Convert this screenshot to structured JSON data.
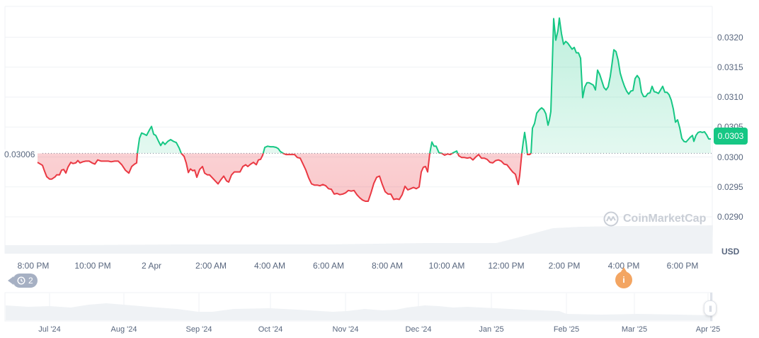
{
  "chart_data": {
    "type": "line",
    "title": "",
    "xlabel": "",
    "ylabel": "USD",
    "currency_label": "USD",
    "baseline_value": 0.03006,
    "baseline_label": "0.03006",
    "current_price": 0.0303,
    "current_price_label": "0.0303",
    "ylim": [
      0.0284,
      0.0325
    ],
    "grid": true,
    "y_ticks": [
      "0.0320",
      "0.0315",
      "0.0310",
      "0.0305",
      "0.0300",
      "0.0295",
      "0.0290"
    ],
    "x_ticks": [
      "8:00 PM",
      "10:00 PM",
      "2 Apr",
      "2:00 AM",
      "4:00 AM",
      "6:00 AM",
      "8:00 AM",
      "10:00 AM",
      "12:00 PM",
      "2:00 PM",
      "4:00 PM",
      "6:00 PM"
    ],
    "colors": {
      "up": "#16c784",
      "down": "#ea3943",
      "up_fill": "#16c784",
      "down_fill": "#ea3943",
      "grid": "#eff2f5",
      "volume": "#eff2f5"
    },
    "series": [
      {
        "name": "Price",
        "points": [
          [
            53,
            0.02991
          ],
          [
            60,
            0.02986
          ],
          [
            63,
            0.02976
          ],
          [
            66,
            0.02967
          ],
          [
            70,
            0.02963
          ],
          [
            73,
            0.02963
          ],
          [
            78,
            0.02967
          ],
          [
            80,
            0.0297
          ],
          [
            84,
            0.0297
          ],
          [
            87,
            0.02978
          ],
          [
            90,
            0.02979
          ],
          [
            93,
            0.02973
          ],
          [
            96,
            0.02983
          ],
          [
            100,
            0.02991
          ],
          [
            103,
            0.02989
          ],
          [
            107,
            0.0299
          ],
          [
            110,
            0.02994
          ],
          [
            113,
            0.0299
          ],
          [
            117,
            0.02992
          ],
          [
            121,
            0.02993
          ],
          [
            126,
            0.02993
          ],
          [
            130,
            0.0299
          ],
          [
            134,
            0.02988
          ],
          [
            138,
            0.02995
          ],
          [
            143,
            0.02993
          ],
          [
            148,
            0.02993
          ],
          [
            153,
            0.02993
          ],
          [
            157,
            0.02992
          ],
          [
            162,
            0.02993
          ],
          [
            167,
            0.02993
          ],
          [
            172,
            0.02987
          ],
          [
            177,
            0.02978
          ],
          [
            182,
            0.02973
          ],
          [
            186,
            0.02984
          ],
          [
            190,
            0.02988
          ],
          [
            193,
            0.0299
          ],
          [
            194,
            0.03006
          ],
          [
            197,
            0.03031
          ],
          [
            200,
            0.0304
          ],
          [
            204,
            0.03038
          ],
          [
            207,
            0.03036
          ],
          [
            211,
            0.03045
          ],
          [
            214,
            0.03051
          ],
          [
            217,
            0.03038
          ],
          [
            220,
            0.03036
          ],
          [
            224,
            0.03026
          ],
          [
            227,
            0.03019
          ],
          [
            230,
            0.03025
          ],
          [
            233,
            0.03021
          ],
          [
            237,
            0.03026
          ],
          [
            241,
            0.03029
          ],
          [
            245,
            0.03026
          ],
          [
            249,
            0.03024
          ],
          [
            253,
            0.03015
          ],
          [
            256,
            0.03006
          ],
          [
            260,
            0.03001
          ],
          [
            263,
            0.0299
          ],
          [
            266,
            0.02974
          ],
          [
            269,
            0.0298
          ],
          [
            272,
            0.02977
          ],
          [
            275,
            0.02978
          ],
          [
            278,
            0.02966
          ],
          [
            282,
            0.02979
          ],
          [
            286,
            0.02984
          ],
          [
            289,
            0.02973
          ],
          [
            293,
            0.0297
          ],
          [
            296,
            0.0297
          ],
          [
            300,
            0.02965
          ],
          [
            304,
            0.0296
          ],
          [
            308,
            0.02955
          ],
          [
            312,
            0.02962
          ],
          [
            316,
            0.02968
          ],
          [
            320,
            0.0296
          ],
          [
            323,
            0.02958
          ],
          [
            327,
            0.0297
          ],
          [
            331,
            0.02975
          ],
          [
            335,
            0.02975
          ],
          [
            339,
            0.02975
          ],
          [
            343,
            0.02984
          ],
          [
            347,
            0.02987
          ],
          [
            350,
            0.02984
          ],
          [
            354,
            0.02988
          ],
          [
            358,
            0.02991
          ],
          [
            362,
            0.02987
          ],
          [
            365,
            0.02995
          ],
          [
            368,
            0.02996
          ],
          [
            371,
            0.03003
          ],
          [
            374,
            0.03016
          ],
          [
            378,
            0.03018
          ],
          [
            382,
            0.03017
          ],
          [
            386,
            0.03017
          ],
          [
            390,
            0.03016
          ],
          [
            393,
            0.03014
          ],
          [
            396,
            0.03009
          ],
          [
            400,
            0.03006
          ],
          [
            404,
            0.03004
          ],
          [
            408,
            0.03004
          ],
          [
            412,
            0.03004
          ],
          [
            416,
            0.03004
          ],
          [
            420,
            0.02999
          ],
          [
            424,
            0.02998
          ],
          [
            428,
            0.02988
          ],
          [
            432,
            0.02978
          ],
          [
            436,
            0.02965
          ],
          [
            440,
            0.02955
          ],
          [
            444,
            0.02953
          ],
          [
            448,
            0.02953
          ],
          [
            452,
            0.02952
          ],
          [
            456,
            0.02954
          ],
          [
            460,
            0.02952
          ],
          [
            464,
            0.02947
          ],
          [
            468,
            0.02946
          ],
          [
            472,
            0.02938
          ],
          [
            476,
            0.02939
          ],
          [
            480,
            0.02937
          ],
          [
            484,
            0.02938
          ],
          [
            488,
            0.0294
          ],
          [
            492,
            0.02944
          ],
          [
            496,
            0.02943
          ],
          [
            500,
            0.02944
          ],
          [
            504,
            0.02937
          ],
          [
            508,
            0.02932
          ],
          [
            512,
            0.02928
          ],
          [
            516,
            0.02926
          ],
          [
            520,
            0.02926
          ],
          [
            524,
            0.0294
          ],
          [
            528,
            0.02956
          ],
          [
            532,
            0.02966
          ],
          [
            536,
            0.02968
          ],
          [
            540,
            0.02954
          ],
          [
            544,
            0.02942
          ],
          [
            548,
            0.02938
          ],
          [
            552,
            0.02938
          ],
          [
            556,
            0.02929
          ],
          [
            560,
            0.0293
          ],
          [
            564,
            0.02929
          ],
          [
            568,
            0.02937
          ],
          [
            572,
            0.02951
          ],
          [
            576,
            0.02945
          ],
          [
            580,
            0.02947
          ],
          [
            584,
            0.02949
          ],
          [
            588,
            0.02947
          ],
          [
            592,
            0.0295
          ],
          [
            595,
            0.02975
          ],
          [
            598,
            0.02983
          ],
          [
            601,
            0.02984
          ],
          [
            604,
            0.02975
          ],
          [
            607,
            0.03006
          ],
          [
            610,
            0.03025
          ],
          [
            613,
            0.03018
          ],
          [
            616,
            0.03018
          ],
          [
            620,
            0.03007
          ],
          [
            624,
            0.03006
          ],
          [
            628,
            0.03003
          ],
          [
            632,
            0.03005
          ],
          [
            636,
            0.03004
          ],
          [
            640,
            0.03007
          ],
          [
            645,
            0.0301
          ],
          [
            648,
            0.03002
          ],
          [
            652,
            0.02999
          ],
          [
            656,
            0.02999
          ],
          [
            660,
            0.02998
          ],
          [
            664,
            0.02999
          ],
          [
            668,
            0.02995
          ],
          [
            672,
            0.03
          ],
          [
            676,
            0.03004
          ],
          [
            680,
            0.02998
          ],
          [
            684,
            0.02998
          ],
          [
            688,
            0.02996
          ],
          [
            692,
            0.02991
          ],
          [
            696,
            0.0299
          ],
          [
            700,
            0.02994
          ],
          [
            704,
            0.02995
          ],
          [
            708,
            0.02993
          ],
          [
            712,
            0.02988
          ],
          [
            716,
            0.02987
          ],
          [
            720,
            0.02981
          ],
          [
            724,
            0.02975
          ],
          [
            728,
            0.02971
          ],
          [
            730,
            0.02962
          ],
          [
            732,
            0.02954
          ],
          [
            734,
            0.02969
          ],
          [
            737,
            0.03006
          ],
          [
            739,
            0.03025
          ],
          [
            741,
            0.03041
          ],
          [
            743,
            0.03025
          ],
          [
            745,
            0.03004
          ],
          [
            748,
            0.03004
          ],
          [
            750,
            0.03006
          ],
          [
            752,
            0.03048
          ],
          [
            755,
            0.03056
          ],
          [
            758,
            0.03073
          ],
          [
            762,
            0.03079
          ],
          [
            765,
            0.03082
          ],
          [
            768,
            0.03079
          ],
          [
            771,
            0.03072
          ],
          [
            774,
            0.03053
          ],
          [
            776,
            0.03062
          ],
          [
            778,
            0.03076
          ],
          [
            782,
            0.03231
          ],
          [
            785,
            0.03195
          ],
          [
            788,
            0.03211
          ],
          [
            790,
            0.03232
          ],
          [
            793,
            0.03206
          ],
          [
            796,
            0.03188
          ],
          [
            799,
            0.03193
          ],
          [
            802,
            0.0319
          ],
          [
            805,
            0.03185
          ],
          [
            808,
            0.0318
          ],
          [
            811,
            0.03183
          ],
          [
            814,
            0.03174
          ],
          [
            817,
            0.03174
          ],
          [
            820,
            0.03165
          ],
          [
            823,
            0.03099
          ],
          [
            826,
            0.03117
          ],
          [
            829,
            0.03124
          ],
          [
            832,
            0.03124
          ],
          [
            835,
            0.03122
          ],
          [
            838,
            0.0312
          ],
          [
            841,
            0.03112
          ],
          [
            844,
            0.03145
          ],
          [
            847,
            0.03138
          ],
          [
            850,
            0.03127
          ],
          [
            853,
            0.03116
          ],
          [
            856,
            0.03112
          ],
          [
            859,
            0.03117
          ],
          [
            862,
            0.03135
          ],
          [
            864,
            0.03152
          ],
          [
            867,
            0.03179
          ],
          [
            870,
            0.03176
          ],
          [
            873,
            0.03162
          ],
          [
            876,
            0.0314
          ],
          [
            879,
            0.03128
          ],
          [
            882,
            0.03118
          ],
          [
            885,
            0.0311
          ],
          [
            888,
            0.03105
          ],
          [
            891,
            0.0311
          ],
          [
            894,
            0.03111
          ],
          [
            897,
            0.03131
          ],
          [
            900,
            0.03136
          ],
          [
            903,
            0.03131
          ],
          [
            906,
            0.03108
          ],
          [
            909,
            0.03101
          ],
          [
            912,
            0.03101
          ],
          [
            915,
            0.03106
          ],
          [
            918,
            0.03107
          ],
          [
            921,
            0.03118
          ],
          [
            924,
            0.03109
          ],
          [
            927,
            0.03108
          ],
          [
            930,
            0.03106
          ],
          [
            933,
            0.03112
          ],
          [
            936,
            0.03118
          ],
          [
            939,
            0.03108
          ],
          [
            942,
            0.03108
          ],
          [
            945,
            0.03104
          ],
          [
            948,
            0.03095
          ],
          [
            951,
            0.0308
          ],
          [
            954,
            0.03058
          ],
          [
            957,
            0.03062
          ],
          [
            960,
            0.03049
          ],
          [
            963,
            0.03031
          ],
          [
            966,
            0.03026
          ],
          [
            969,
            0.03025
          ],
          [
            972,
            0.03029
          ],
          [
            975,
            0.03033
          ],
          [
            978,
            0.03036
          ],
          [
            980,
            0.03026
          ],
          [
            983,
            0.03036
          ],
          [
            986,
            0.03041
          ],
          [
            989,
            0.03042
          ],
          [
            992,
            0.03041
          ],
          [
            995,
            0.03042
          ],
          [
            998,
            0.03037
          ],
          [
            1001,
            0.0303
          ],
          [
            1004,
            0.0303
          ]
        ]
      }
    ],
    "volume": {
      "segments": [
        [
          7,
          12
        ],
        [
          100,
          12
        ],
        [
          250,
          13
        ],
        [
          460,
          13
        ],
        [
          600,
          15
        ],
        [
          700,
          15
        ],
        [
          720,
          20
        ],
        [
          780,
          36
        ],
        [
          820,
          38
        ],
        [
          880,
          39
        ],
        [
          1006,
          40
        ]
      ]
    },
    "navigator": {
      "range_labels": [
        "Jul '24",
        "Aug '24",
        "Sep '24",
        "Oct '24",
        "Nov '24",
        "Dec '24",
        "Jan '25",
        "Feb '25",
        "Mar '25",
        "Apr '25"
      ]
    }
  },
  "overlays": {
    "history_badge_count": "2",
    "info_marker": "i",
    "watermark": "CoinMarketCap",
    "navigator_handle": "||"
  }
}
